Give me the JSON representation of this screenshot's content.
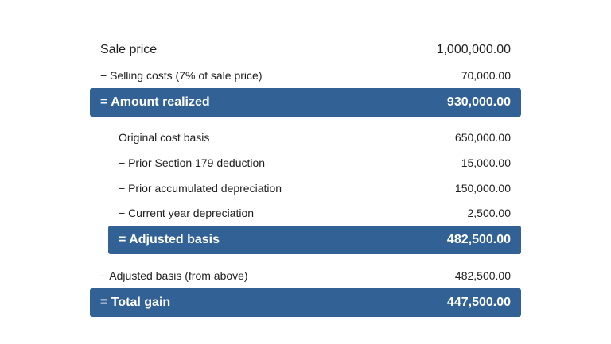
{
  "rows": [
    {
      "label": "Sale price",
      "value": "1,000,000.00"
    },
    {
      "label": "− Selling costs (7% of sale price)",
      "value": "70,000.00"
    },
    {
      "label": "= Amount realized",
      "value": "930,000.00"
    },
    {
      "label": "Original cost basis",
      "value": "650,000.00"
    },
    {
      "label": "− Prior Section 179 deduction",
      "value": "15,000.00"
    },
    {
      "label": "− Prior accumulated depreciation",
      "value": "150,000.00"
    },
    {
      "label": "− Current year depreciation",
      "value": "2,500.00"
    },
    {
      "label": "= Adjusted basis",
      "value": "482,500.00"
    },
    {
      "label": "− Adjusted basis (from above)",
      "value": "482,500.00"
    },
    {
      "label": "= Total gain",
      "value": "447,500.00"
    }
  ],
  "colors": {
    "band": "#326295",
    "text": "#1f1f1f",
    "band_text": "#ffffff"
  }
}
